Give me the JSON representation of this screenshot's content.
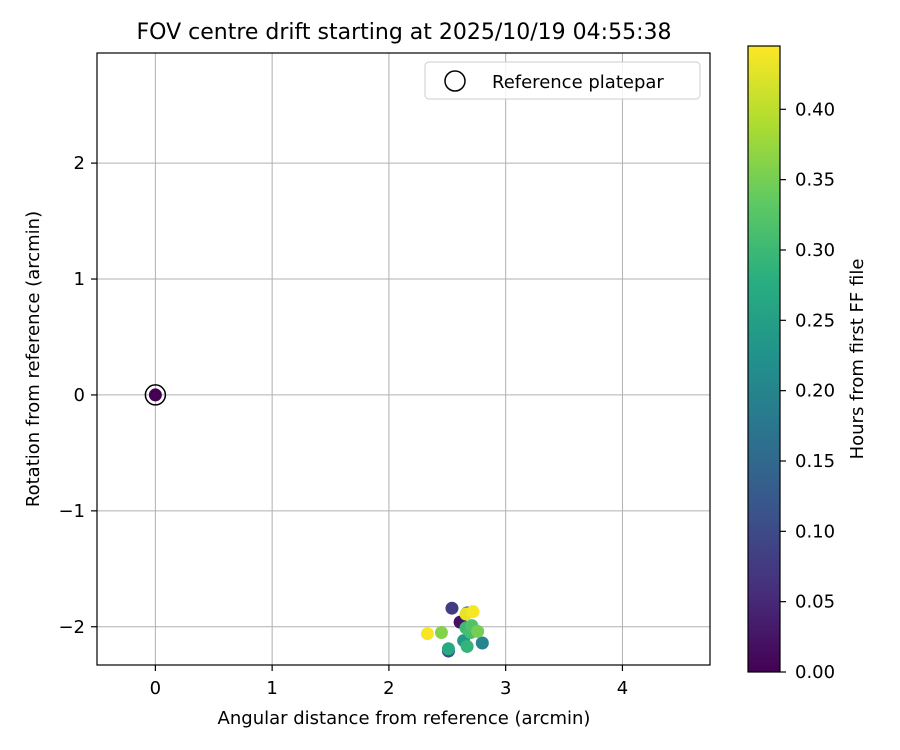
{
  "chart_data": {
    "type": "scatter",
    "title": "FOV centre drift starting at 2025/10/19 04:55:38",
    "xlabel": "Angular distance from reference (arcmin)",
    "ylabel": "Rotation from reference (arcmin)",
    "xlim": [
      -0.5,
      4.75
    ],
    "ylim": [
      -2.33,
      2.95
    ],
    "xticks": [
      0,
      1,
      2,
      3,
      4
    ],
    "yticks": [
      -2,
      -1,
      0,
      1,
      2
    ],
    "xtick_labels": [
      "0",
      "1",
      "2",
      "3",
      "4"
    ],
    "ytick_labels": [
      "−2",
      "−1",
      "0",
      "1",
      "2"
    ],
    "grid": true,
    "legend": {
      "position": "upper-right",
      "entries": [
        "Reference platepar"
      ]
    },
    "colorbar": {
      "label": "Hours from first FF file",
      "colormap": "viridis",
      "range": [
        0,
        0.445
      ],
      "ticks": [
        0.0,
        0.05,
        0.1,
        0.15,
        0.2,
        0.25,
        0.3,
        0.35,
        0.4
      ],
      "tick_labels": [
        "0.00",
        "0.05",
        "0.10",
        "0.15",
        "0.20",
        "0.25",
        "0.30",
        "0.35",
        "0.40"
      ]
    },
    "reference_point": {
      "x": 0,
      "y": 0,
      "label": "Reference platepar"
    },
    "points": [
      {
        "x": 0.0,
        "y": 0.0,
        "t": 0.0
      },
      {
        "x": 2.61,
        "y": -1.96,
        "t": 0.02
      },
      {
        "x": 2.54,
        "y": -1.84,
        "t": 0.08
      },
      {
        "x": 2.51,
        "y": -2.21,
        "t": 0.11
      },
      {
        "x": 2.67,
        "y": -1.88,
        "t": 0.14
      },
      {
        "x": 2.8,
        "y": -2.14,
        "t": 0.2
      },
      {
        "x": 2.64,
        "y": -2.12,
        "t": 0.24
      },
      {
        "x": 2.51,
        "y": -2.19,
        "t": 0.27
      },
      {
        "x": 2.67,
        "y": -2.17,
        "t": 0.29
      },
      {
        "x": 2.66,
        "y": -2.01,
        "t": 0.3
      },
      {
        "x": 2.7,
        "y": -2.05,
        "t": 0.31
      },
      {
        "x": 2.71,
        "y": -1.99,
        "t": 0.32
      },
      {
        "x": 2.76,
        "y": -2.04,
        "t": 0.35
      },
      {
        "x": 2.45,
        "y": -2.05,
        "t": 0.36
      },
      {
        "x": 2.33,
        "y": -2.06,
        "t": 0.44
      },
      {
        "x": 2.66,
        "y": -1.89,
        "t": 0.43
      },
      {
        "x": 2.72,
        "y": -1.87,
        "t": 0.44
      }
    ]
  }
}
